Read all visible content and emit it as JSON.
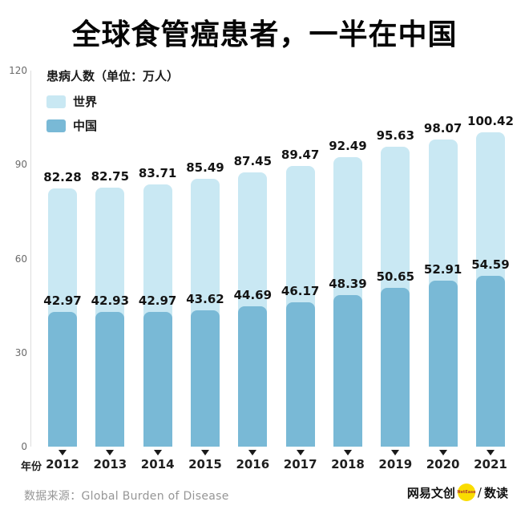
{
  "chart_data": {
    "type": "bar",
    "title": "全球食管癌患者，一半在中国",
    "unit_label": "患病人数（单位：万人）",
    "xlabel": "年份",
    "categories": [
      "2012",
      "2013",
      "2014",
      "2015",
      "2016",
      "2017",
      "2018",
      "2019",
      "2020",
      "2021"
    ],
    "series": [
      {
        "name": "世界",
        "color": "#c9e8f3",
        "values": [
          82.28,
          82.75,
          83.71,
          85.49,
          87.45,
          89.47,
          92.49,
          95.63,
          98.07,
          100.42
        ]
      },
      {
        "name": "中国",
        "color": "#79b9d6",
        "values": [
          42.97,
          42.93,
          42.97,
          43.62,
          44.69,
          46.17,
          48.39,
          50.65,
          52.91,
          54.59
        ]
      }
    ],
    "ylim": [
      0,
      120
    ],
    "yticks": [
      0,
      30,
      60,
      90,
      120
    ],
    "grid": false,
    "legend_position": "top-left"
  },
  "footer": {
    "source_label": "数据来源：",
    "source_value": "Global Burden of Disease",
    "brand_name": "网易文创",
    "brand_logo_text": "NetEase",
    "brand_logo_color": "#fadc00",
    "separator": "/",
    "brand_product": "数读"
  }
}
